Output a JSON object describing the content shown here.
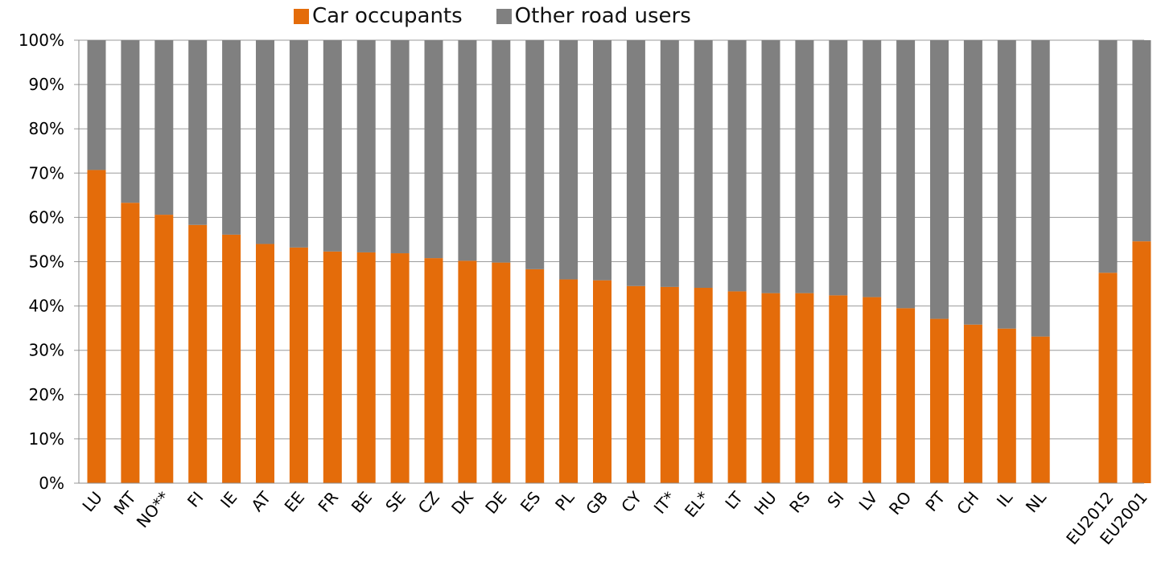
{
  "chart_data": {
    "type": "bar",
    "stacked": true,
    "categories": [
      "LU",
      "MT",
      "NO**",
      "FI",
      "IE",
      "AT",
      "EE",
      "FR",
      "BE",
      "SE",
      "CZ",
      "DK",
      "DE",
      "ES",
      "PL",
      "GB",
      "CY",
      "IT*",
      "EL*",
      "LT",
      "HU",
      "RS",
      "SI",
      "LV",
      "RO",
      "PT",
      "CH",
      "IL",
      "NL",
      "EU2012",
      "EU2001"
    ],
    "series": [
      {
        "name": "Car occupants",
        "color": "#E46C0A",
        "values": [
          70.7,
          63.3,
          60.6,
          58.3,
          56.1,
          54.0,
          53.2,
          52.3,
          52.1,
          51.9,
          50.8,
          50.2,
          49.8,
          48.3,
          46.0,
          45.8,
          44.5,
          44.3,
          44.1,
          43.3,
          42.9,
          42.9,
          42.4,
          42.0,
          39.5,
          37.1,
          35.8,
          34.9,
          33.1,
          47.5,
          54.6
        ]
      },
      {
        "name": "Other road users",
        "color": "#808080",
        "values": [
          29.3,
          36.7,
          39.4,
          41.7,
          43.9,
          46.0,
          46.8,
          47.7,
          47.9,
          48.1,
          49.2,
          49.8,
          50.2,
          51.7,
          54.0,
          54.2,
          55.5,
          55.7,
          55.9,
          56.7,
          57.1,
          57.1,
          57.6,
          58.0,
          60.5,
          62.9,
          64.2,
          65.1,
          66.9,
          52.5,
          45.4
        ]
      }
    ],
    "ylim": [
      0,
      100
    ],
    "yticks": [
      "0%",
      "10%",
      "20%",
      "30%",
      "40%",
      "50%",
      "60%",
      "70%",
      "80%",
      "90%",
      "100%"
    ],
    "grid": true,
    "legend_position": "top"
  }
}
